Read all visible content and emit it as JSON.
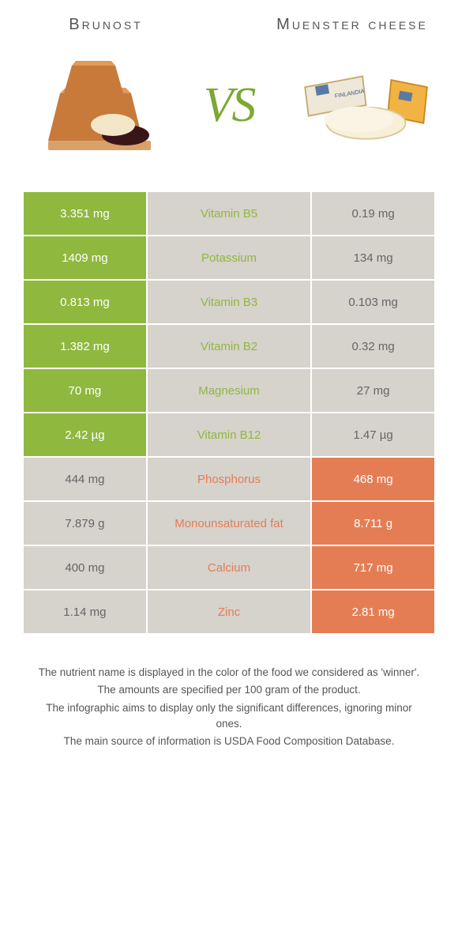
{
  "colors": {
    "green": "#8fb83e",
    "orange": "#e57d54",
    "neutral": "#d6d2cc",
    "vs": "#7da834"
  },
  "left_title": "Brunost",
  "right_title": "Muenster cheese",
  "vs_label": "VS",
  "rows": [
    {
      "left": "3.351 mg",
      "nutrient": "Vitamin B5",
      "right": "0.19 mg",
      "left_on": true,
      "right_on": false,
      "label_color": "green"
    },
    {
      "left": "1409 mg",
      "nutrient": "Potassium",
      "right": "134 mg",
      "left_on": true,
      "right_on": false,
      "label_color": "green"
    },
    {
      "left": "0.813 mg",
      "nutrient": "Vitamin B3",
      "right": "0.103 mg",
      "left_on": true,
      "right_on": false,
      "label_color": "green"
    },
    {
      "left": "1.382 mg",
      "nutrient": "Vitamin B2",
      "right": "0.32 mg",
      "left_on": true,
      "right_on": false,
      "label_color": "green"
    },
    {
      "left": "70 mg",
      "nutrient": "Magnesium",
      "right": "27 mg",
      "left_on": true,
      "right_on": false,
      "label_color": "green"
    },
    {
      "left": "2.42 µg",
      "nutrient": "Vitamin B12",
      "right": "1.47 µg",
      "left_on": true,
      "right_on": false,
      "label_color": "green"
    },
    {
      "left": "444 mg",
      "nutrient": "Phosphorus",
      "right": "468 mg",
      "left_on": false,
      "right_on": true,
      "label_color": "orange"
    },
    {
      "left": "7.879 g",
      "nutrient": "Monounsaturated fat",
      "right": "8.711 g",
      "left_on": false,
      "right_on": true,
      "label_color": "orange"
    },
    {
      "left": "400 mg",
      "nutrient": "Calcium",
      "right": "717 mg",
      "left_on": false,
      "right_on": true,
      "label_color": "orange"
    },
    {
      "left": "1.14 mg",
      "nutrient": "Zinc",
      "right": "2.81 mg",
      "left_on": false,
      "right_on": true,
      "label_color": "orange"
    }
  ],
  "footer": [
    "The nutrient name is displayed in the color of the food we considered as 'winner'.",
    "The amounts are specified per 100 gram of the product.",
    "The infographic aims to display only the significant differences, ignoring minor ones.",
    "The main source of information is USDA Food Composition Database."
  ]
}
